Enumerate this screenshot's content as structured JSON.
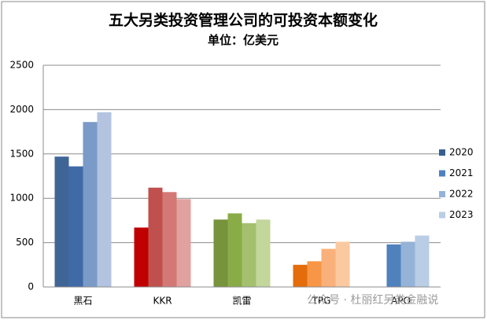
{
  "chart_data": {
    "type": "bar",
    "title": "五大另类投资管理公司的可投资本额变化",
    "subtitle": "单位：亿美元",
    "watermark": "公众号 · 杜丽红另类金融说",
    "categories": [
      "黑石",
      "KKR",
      "凯雷",
      "TPG",
      "APO"
    ],
    "series": [
      {
        "name": "2020",
        "color": "#366092",
        "colors": [
          "#3f6597",
          "#c00000",
          "#77933c",
          "#e46c0a",
          "#4f81bd"
        ],
        "values": [
          1470,
          670,
          760,
          250,
          null
        ]
      },
      {
        "name": "2021",
        "color": "#4f81bd",
        "colors": [
          "#3f6aa6",
          "#c0504d",
          "#8aac46",
          "#f79646",
          "#4f81bd"
        ],
        "values": [
          1360,
          1120,
          830,
          290,
          480
        ]
      },
      {
        "name": "2022",
        "color": "#95b3d7",
        "colors": [
          "#7a9ac8",
          "#d47876",
          "#a4c06f",
          "#f9b07a",
          "#95b3d7"
        ],
        "values": [
          1860,
          1070,
          720,
          430,
          510
        ]
      },
      {
        "name": "2023",
        "color": "#b9cde5",
        "colors": [
          "#b3c3e0",
          "#e0a19f",
          "#c3d69b",
          "#fbc9a0",
          "#b9cde5"
        ],
        "values": [
          1970,
          990,
          760,
          510,
          580
        ]
      }
    ],
    "ylim": [
      0,
      2500
    ],
    "yticks": [
      0,
      500,
      1000,
      1500,
      2000,
      2500
    ],
    "grid": true,
    "legend": "right"
  }
}
